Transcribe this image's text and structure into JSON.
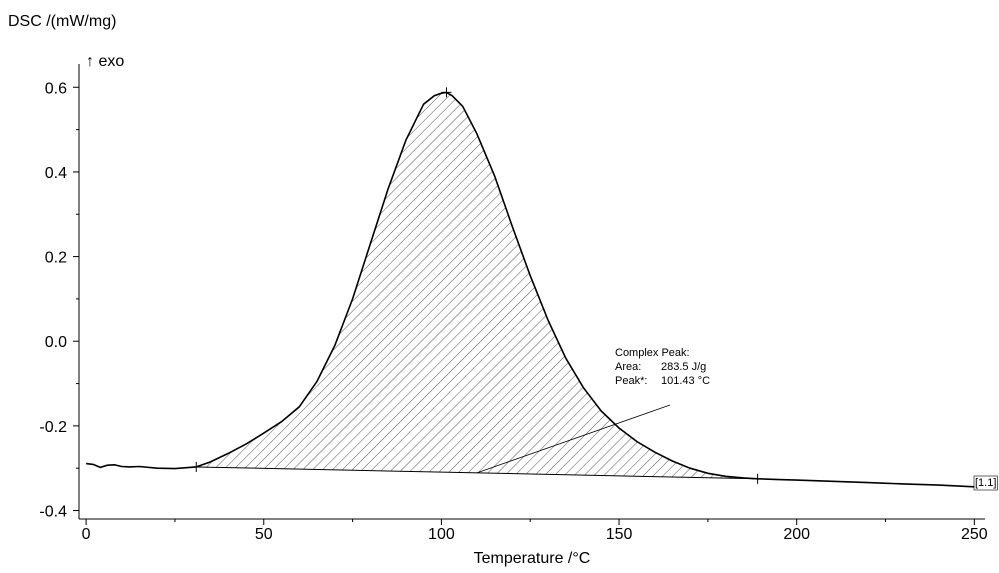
{
  "chart_data": {
    "type": "line",
    "title": "",
    "xlabel": "Temperature /°C",
    "ylabel": "DSC /(mW/mg)",
    "direction_label": "↑ exo",
    "xlim": [
      -2,
      253
    ],
    "ylim": [
      -0.42,
      0.655
    ],
    "x_ticks": [
      0,
      50,
      100,
      150,
      200,
      250
    ],
    "y_ticks": [
      -0.4,
      -0.2,
      0.0,
      0.2,
      0.4,
      0.6
    ],
    "x_tick_labels": [
      "0",
      "50",
      "100",
      "150",
      "200",
      "250"
    ],
    "y_tick_labels": [
      "-0.4",
      "-0.2",
      "0.0",
      "0.2",
      "0.4",
      "0.6"
    ],
    "grid": false,
    "series": [
      {
        "x": [
          0,
          2,
          4,
          6,
          8,
          10,
          12,
          15,
          20,
          25,
          31,
          35,
          40,
          45,
          50,
          55,
          60,
          65,
          70,
          75,
          80,
          85,
          90,
          95,
          98,
          100,
          101.4,
          103,
          106,
          110,
          115,
          120,
          125,
          130,
          135,
          140,
          145,
          150,
          155,
          160,
          165,
          170,
          175,
          180,
          185,
          189,
          195,
          200,
          210,
          220,
          230,
          240,
          250
        ],
        "y": [
          -0.289,
          -0.291,
          -0.298,
          -0.293,
          -0.292,
          -0.296,
          -0.297,
          -0.296,
          -0.3,
          -0.301,
          -0.297,
          -0.285,
          -0.265,
          -0.243,
          -0.217,
          -0.19,
          -0.155,
          -0.095,
          -0.01,
          0.1,
          0.23,
          0.36,
          0.475,
          0.56,
          0.58,
          0.586,
          0.588,
          0.58,
          0.555,
          0.49,
          0.39,
          0.27,
          0.155,
          0.05,
          -0.04,
          -0.11,
          -0.165,
          -0.205,
          -0.237,
          -0.262,
          -0.283,
          -0.3,
          -0.312,
          -0.319,
          -0.323,
          -0.325,
          -0.327,
          -0.328,
          -0.331,
          -0.334,
          -0.337,
          -0.34,
          -0.344
        ]
      }
    ],
    "peak_integration": {
      "start_x": 31,
      "start_y": -0.297,
      "end_x": 189,
      "end_y": -0.325,
      "peak_x": 101.43,
      "peak_y": 0.588,
      "fill": "hatched"
    },
    "annotation": {
      "title": "Complex Peak:",
      "area_label": "Area:",
      "area_value": "283.5 J/g",
      "peak_label": "Peak*:",
      "peak_value": "101.43 °C"
    },
    "curve_tag": "[1.1]",
    "colors": {
      "line": "#000000",
      "axis": "#000000",
      "hatch": "#555555"
    }
  }
}
